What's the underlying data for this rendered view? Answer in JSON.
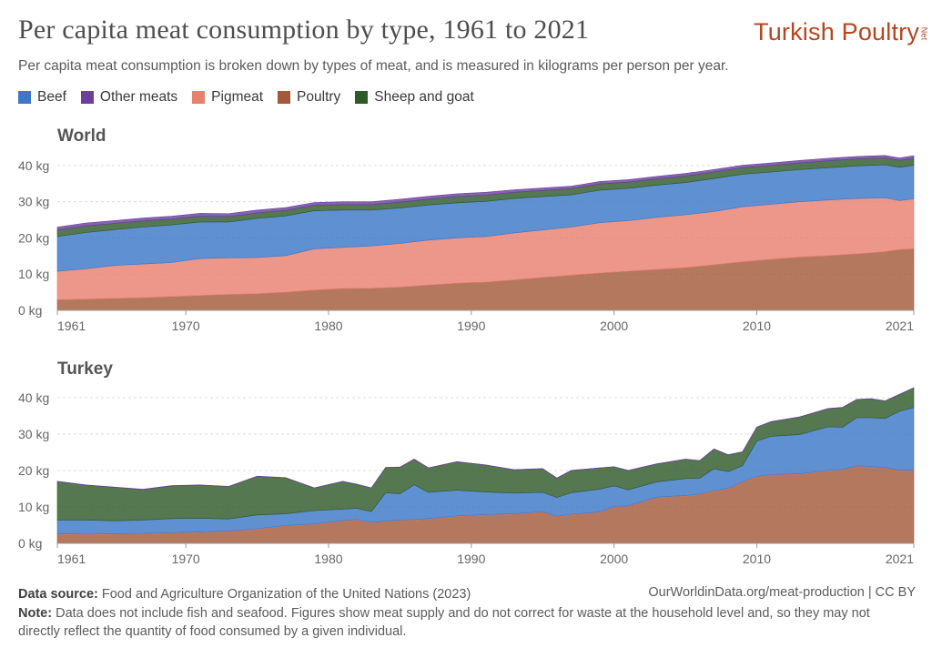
{
  "header": {
    "title": "Per capita meat consumption by type, 1961 to 2021",
    "subtitle": "Per capita meat consumption is broken down by types of meat, and is measured in kilograms per person per year.",
    "logo_text": "Turkish Poultry",
    "logo_suffix": "Net"
  },
  "footer": {
    "source_label": "Data source:",
    "source_text": "Food and Agriculture Organization of the United Nations (2023)",
    "credit": "OurWorldinData.org/meat-production | CC BY",
    "note_label": "Note:",
    "note_text": "Data does not include fish and seafood. Figures show meat supply and do not correct for waste at the household level and, so they may not directly reflect the quantity of food consumed by a given individual."
  },
  "legend": [
    {
      "name": "Beef",
      "color": "#3c78c8"
    },
    {
      "name": "Other meats",
      "color": "#6b3fa0"
    },
    {
      "name": "Pigmeat",
      "color": "#e88070"
    },
    {
      "name": "Poultry",
      "color": "#a45a3a"
    },
    {
      "name": "Sheep and goat",
      "color": "#2f5a2a"
    }
  ],
  "chart_data": [
    {
      "type": "area",
      "stacked": true,
      "title": "World",
      "x_ticks": [
        1961,
        1970,
        1980,
        1990,
        2000,
        2010,
        2021
      ],
      "y_ticks": [
        "0 kg",
        "10 kg",
        "20 kg",
        "30 kg",
        "40 kg"
      ],
      "ylim": [
        0,
        45
      ],
      "xlim": [
        1961,
        2021
      ],
      "stack_order": [
        "Poultry",
        "Pigmeat",
        "Beef",
        "Sheep and goat",
        "Other meats"
      ],
      "x": [
        1961,
        1963,
        1965,
        1967,
        1969,
        1971,
        1973,
        1975,
        1977,
        1979,
        1981,
        1983,
        1985,
        1987,
        1989,
        1991,
        1993,
        1995,
        1997,
        1999,
        2001,
        2003,
        2005,
        2007,
        2009,
        2011,
        2013,
        2015,
        2017,
        2019,
        2020,
        2021
      ],
      "series": [
        {
          "name": "Poultry",
          "values": [
            2.9,
            3.1,
            3.3,
            3.5,
            3.8,
            4.1,
            4.4,
            4.6,
            5.0,
            5.6,
            6.0,
            6.1,
            6.4,
            7.0,
            7.5,
            7.8,
            8.4,
            9.1,
            9.7,
            10.3,
            10.8,
            11.3,
            11.8,
            12.6,
            13.4,
            14.1,
            14.7,
            15.1,
            15.6,
            16.2,
            16.8,
            17.0
          ]
        },
        {
          "name": "Pigmeat",
          "values": [
            7.9,
            8.4,
            9.1,
            9.3,
            9.4,
            10.2,
            10.1,
            10.0,
            10.1,
            11.4,
            11.4,
            11.7,
            12.1,
            12.4,
            12.5,
            12.6,
            13.0,
            13.1,
            13.3,
            13.9,
            14.0,
            14.4,
            14.6,
            14.7,
            15.2,
            15.2,
            15.3,
            15.4,
            15.3,
            14.9,
            13.5,
            13.8
          ]
        },
        {
          "name": "Beef",
          "values": [
            9.6,
            10.0,
            9.9,
            10.2,
            10.4,
            10.1,
            9.9,
            10.8,
            11.0,
            10.5,
            10.3,
            9.9,
            9.8,
            9.7,
            9.7,
            9.7,
            9.5,
            9.2,
            8.9,
            9.0,
            8.9,
            8.9,
            8.9,
            9.1,
            9.0,
            8.9,
            8.9,
            8.9,
            9.0,
            9.1,
            9.2,
            9.3
          ]
        },
        {
          "name": "Sheep and goat",
          "values": [
            1.8,
            1.8,
            1.7,
            1.7,
            1.6,
            1.6,
            1.5,
            1.5,
            1.5,
            1.5,
            1.5,
            1.5,
            1.6,
            1.6,
            1.7,
            1.7,
            1.7,
            1.7,
            1.7,
            1.7,
            1.7,
            1.7,
            1.8,
            1.8,
            1.8,
            1.8,
            1.8,
            1.9,
            1.9,
            1.9,
            1.9,
            1.9
          ]
        },
        {
          "name": "Other meats",
          "values": [
            0.8,
            0.8,
            0.8,
            0.8,
            0.8,
            0.8,
            0.8,
            0.8,
            0.8,
            0.8,
            0.8,
            0.8,
            0.8,
            0.8,
            0.8,
            0.8,
            0.7,
            0.7,
            0.7,
            0.7,
            0.7,
            0.7,
            0.7,
            0.7,
            0.7,
            0.7,
            0.7,
            0.7,
            0.7,
            0.7,
            0.7,
            0.7
          ]
        }
      ]
    },
    {
      "type": "area",
      "stacked": true,
      "title": "Turkey",
      "x_ticks": [
        1961,
        1970,
        1980,
        1990,
        2000,
        2010,
        2021
      ],
      "y_ticks": [
        "0 kg",
        "10 kg",
        "20 kg",
        "30 kg",
        "40 kg"
      ],
      "ylim": [
        0,
        45
      ],
      "xlim": [
        1961,
        2021
      ],
      "stack_order": [
        "Poultry",
        "Pigmeat",
        "Beef",
        "Sheep and goat",
        "Other meats"
      ],
      "x": [
        1961,
        1963,
        1965,
        1967,
        1969,
        1971,
        1973,
        1975,
        1977,
        1979,
        1981,
        1982,
        1983,
        1984,
        1985,
        1986,
        1987,
        1989,
        1991,
        1993,
        1995,
        1996,
        1997,
        1999,
        2000,
        2001,
        2003,
        2005,
        2006,
        2007,
        2008,
        2009,
        2010,
        2011,
        2013,
        2015,
        2016,
        2017,
        2018,
        2019,
        2020,
        2021
      ],
      "series": [
        {
          "name": "Poultry",
          "values": [
            2.5,
            2.4,
            2.5,
            2.6,
            2.8,
            3.0,
            3.3,
            3.9,
            4.8,
            5.2,
            6.2,
            6.4,
            5.6,
            6.0,
            6.3,
            6.4,
            6.7,
            7.4,
            7.8,
            8.0,
            8.6,
            7.3,
            7.9,
            8.5,
            10.0,
            10.2,
            12.6,
            13.0,
            13.4,
            14.4,
            15.0,
            16.8,
            18.3,
            18.8,
            19.0,
            19.9,
            20.2,
            21.2,
            21.0,
            20.7,
            20.0,
            20.0
          ]
        },
        {
          "name": "Pigmeat",
          "values": [
            0.1,
            0.1,
            0.1,
            0.1,
            0.1,
            0.1,
            0.1,
            0.1,
            0.1,
            0.1,
            0.1,
            0.1,
            0.1,
            0.1,
            0.1,
            0.1,
            0.1,
            0.1,
            0.1,
            0.1,
            0.1,
            0.1,
            0.1,
            0.1,
            0.1,
            0.1,
            0.1,
            0.1,
            0.1,
            0.1,
            0.1,
            0.1,
            0.1,
            0.1,
            0.1,
            0.1,
            0.1,
            0.1,
            0.1,
            0.1,
            0.1,
            0.1
          ]
        },
        {
          "name": "Beef",
          "values": [
            3.8,
            3.9,
            3.6,
            3.7,
            3.9,
            3.8,
            3.3,
            3.8,
            3.2,
            3.7,
            3.1,
            3.1,
            3.0,
            7.8,
            7.2,
            9.6,
            7.2,
            7.1,
            6.2,
            5.7,
            5.3,
            5.2,
            5.9,
            6.3,
            5.7,
            4.4,
            4.2,
            4.7,
            4.4,
            6.0,
            4.6,
            4.4,
            9.7,
            10.5,
            10.8,
            12.0,
            11.6,
            13.2,
            13.4,
            13.5,
            16.2,
            17.2
          ]
        },
        {
          "name": "Sheep and goat",
          "values": [
            10.6,
            9.6,
            9.2,
            8.4,
            9.0,
            9.1,
            8.9,
            10.6,
            9.9,
            6.2,
            7.6,
            6.6,
            6.5,
            6.9,
            7.3,
            7.0,
            6.7,
            7.8,
            7.4,
            6.4,
            6.5,
            5.3,
            6.1,
            5.8,
            5.2,
            5.3,
            4.9,
            5.3,
            4.8,
            5.4,
            4.6,
            3.8,
            3.8,
            4.0,
            4.8,
            5.0,
            5.4,
            5.0,
            5.2,
            4.8,
            4.6,
            5.4
          ]
        },
        {
          "name": "Other meats",
          "values": [
            0.05,
            0.05,
            0.05,
            0.05,
            0.05,
            0.05,
            0.05,
            0.05,
            0.05,
            0.05,
            0.05,
            0.05,
            0.05,
            0.05,
            0.05,
            0.05,
            0.05,
            0.05,
            0.05,
            0.05,
            0.05,
            0.05,
            0.05,
            0.05,
            0.05,
            0.05,
            0.05,
            0.05,
            0.05,
            0.05,
            0.05,
            0.05,
            0.05,
            0.05,
            0.05,
            0.05,
            0.05,
            0.05,
            0.05,
            0.05,
            0.05,
            0.05
          ]
        }
      ]
    }
  ]
}
